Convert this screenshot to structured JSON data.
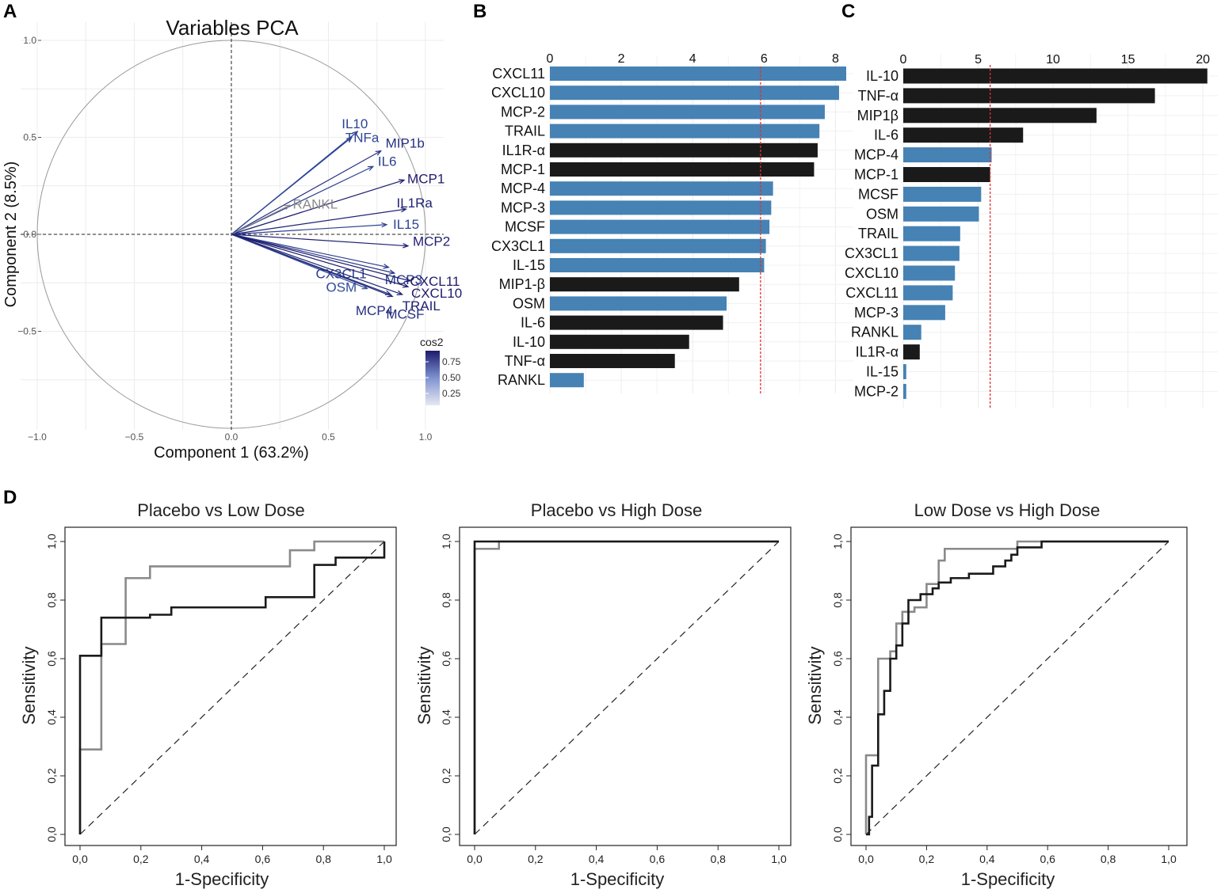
{
  "panels": {
    "A": "A",
    "B": "B",
    "C": "C",
    "D": "D"
  },
  "colors": {
    "blue": "#4682B4",
    "black": "#1a1a1a",
    "cutoff": "#e03030",
    "roc_dark": "#1a1a1a",
    "roc_gray": "#8a8a8a"
  },
  "chart_data": [
    {
      "id": "pca",
      "type": "scatter",
      "title": "Variables PCA",
      "xlabel": "Component 1 (63.2%)",
      "ylabel": "Component 2 (8.5%)",
      "xlim": [
        -1.0,
        1.1
      ],
      "ylim": [
        -1.0,
        1.05
      ],
      "xticks": [
        -1.0,
        -0.5,
        0.0,
        0.5,
        1.0
      ],
      "xtick_labels": [
        "−1.0",
        "−0.5",
        "0.0",
        "0.5",
        "1.0"
      ],
      "yticks": [
        -0.5,
        0.0,
        0.5,
        1.0
      ],
      "ytick_labels": [
        "−0.5",
        "0.0",
        "0.5",
        "1.0"
      ],
      "legend_title": "cos2",
      "legend_ticks": [
        "0.75",
        "0.50",
        "0.25"
      ],
      "legend_range": [
        0.1,
        0.85
      ],
      "variables": [
        {
          "name": "IL10",
          "x": 0.65,
          "y": 0.53,
          "cos2": 0.55
        },
        {
          "name": "TNFa",
          "x": 0.62,
          "y": 0.5,
          "cos2": 0.52
        },
        {
          "name": "MIP1b",
          "x": 0.77,
          "y": 0.43,
          "cos2": 0.7
        },
        {
          "name": "IL6",
          "x": 0.73,
          "y": 0.35,
          "cos2": 0.58
        },
        {
          "name": "MCP1",
          "x": 0.89,
          "y": 0.28,
          "cos2": 0.85
        },
        {
          "name": "RANKL",
          "x": 0.3,
          "y": 0.15,
          "cos2": 0.12
        },
        {
          "name": "IL1Ra",
          "x": 0.9,
          "y": 0.13,
          "cos2": 0.8
        },
        {
          "name": "IL15",
          "x": 0.8,
          "y": 0.05,
          "cos2": 0.55
        },
        {
          "name": "MCP2",
          "x": 0.91,
          "y": -0.06,
          "cos2": 0.82
        },
        {
          "name": "CX3CL1",
          "x": 0.81,
          "y": -0.17,
          "cos2": 0.6
        },
        {
          "name": "MCP3",
          "x": 0.84,
          "y": -0.2,
          "cos2": 0.65
        },
        {
          "name": "CXCL11",
          "x": 0.92,
          "y": -0.24,
          "cos2": 0.85
        },
        {
          "name": "CXCL10",
          "x": 0.91,
          "y": -0.27,
          "cos2": 0.85
        },
        {
          "name": "TRAIL",
          "x": 0.88,
          "y": -0.31,
          "cos2": 0.8
        },
        {
          "name": "OSM",
          "x": 0.7,
          "y": -0.28,
          "cos2": 0.5
        },
        {
          "name": "MCP4",
          "x": 0.82,
          "y": -0.31,
          "cos2": 0.7
        },
        {
          "name": "MCSF",
          "x": 0.83,
          "y": -0.32,
          "cos2": 0.7
        }
      ]
    },
    {
      "id": "barB",
      "type": "bar",
      "orientation": "horizontal",
      "xlim": [
        0,
        8.5
      ],
      "xticks": [
        0,
        2,
        4,
        6,
        8
      ],
      "cutoff": 5.9,
      "categories": [
        "CXCL11",
        "CXCL10",
        "MCP-2",
        "TRAIL",
        "IL1R-α",
        "MCP-1",
        "MCP-4",
        "MCP-3",
        "MCSF",
        "CX3CL1",
        "IL-15",
        "MIP1-β",
        "OSM",
        "IL-6",
        "IL-10",
        "TNF-α",
        "RANKL"
      ],
      "values": [
        8.3,
        8.1,
        7.7,
        7.55,
        7.5,
        7.4,
        6.25,
        6.2,
        6.15,
        6.05,
        6.0,
        5.3,
        4.95,
        4.85,
        3.9,
        3.5,
        0.95
      ],
      "colors": [
        "blue",
        "blue",
        "blue",
        "blue",
        "black",
        "black",
        "blue",
        "blue",
        "blue",
        "blue",
        "blue",
        "black",
        "blue",
        "black",
        "black",
        "black",
        "blue"
      ]
    },
    {
      "id": "barC",
      "type": "bar",
      "orientation": "horizontal",
      "xlim": [
        0,
        21
      ],
      "xticks": [
        0,
        5,
        10,
        15,
        20
      ],
      "cutoff": 5.8,
      "categories": [
        "IL-10",
        "TNF-α",
        "MIP1β",
        "IL-6",
        "MCP-4",
        "MCP-1",
        "MCSF",
        "OSM",
        "TRAIL",
        "CX3CL1",
        "CXCL10",
        "CXCL11",
        "MCP-3",
        "RANKL",
        "IL1R-α",
        "IL-15",
        "MCP-2"
      ],
      "values": [
        20.3,
        16.8,
        12.9,
        8.0,
        5.9,
        5.8,
        5.2,
        5.05,
        3.8,
        3.75,
        3.45,
        3.3,
        2.8,
        1.2,
        1.1,
        0.2,
        0.2
      ],
      "colors": [
        "black",
        "black",
        "black",
        "black",
        "blue",
        "black",
        "blue",
        "blue",
        "blue",
        "blue",
        "blue",
        "blue",
        "blue",
        "blue",
        "black",
        "blue",
        "blue"
      ]
    },
    {
      "id": "roc1",
      "type": "line",
      "title": "Placebo vs Low Dose",
      "xlabel": "1-Specificity",
      "ylabel": "Sensitivity",
      "xlim": [
        0,
        1
      ],
      "ylim": [
        0,
        1
      ],
      "tick_labels": [
        "0,0",
        "0,2",
        "0,4",
        "0,6",
        "0,8",
        "1,0"
      ],
      "series": [
        {
          "name": "dark",
          "color": "roc_dark",
          "x": [
            0,
            0,
            0.07,
            0.07,
            0.23,
            0.23,
            0.3,
            0.3,
            0.61,
            0.61,
            0.77,
            0.77,
            0.84,
            0.84,
            1.0,
            1.0
          ],
          "y": [
            0,
            0.61,
            0.61,
            0.74,
            0.74,
            0.75,
            0.75,
            0.775,
            0.775,
            0.81,
            0.81,
            0.92,
            0.92,
            0.945,
            0.945,
            1.0
          ]
        },
        {
          "name": "gray",
          "color": "roc_gray",
          "x": [
            0,
            0,
            0.07,
            0.07,
            0.15,
            0.15,
            0.23,
            0.23,
            0.69,
            0.69,
            0.77,
            0.77,
            1.0
          ],
          "y": [
            0,
            0.29,
            0.29,
            0.65,
            0.65,
            0.875,
            0.875,
            0.915,
            0.915,
            0.97,
            0.97,
            1.0,
            1.0
          ]
        }
      ]
    },
    {
      "id": "roc2",
      "type": "line",
      "title": "Placebo vs High Dose",
      "xlabel": "1-Specificity",
      "ylabel": "Sensitivity",
      "xlim": [
        0,
        1
      ],
      "ylim": [
        0,
        1
      ],
      "tick_labels": [
        "0,0",
        "0,2",
        "0,4",
        "0,6",
        "0,8",
        "1,0"
      ],
      "series": [
        {
          "name": "dark",
          "color": "roc_dark",
          "x": [
            0,
            0,
            0.08,
            0.08,
            1.0
          ],
          "y": [
            0,
            1.0,
            1.0,
            1.0,
            1.0
          ]
        },
        {
          "name": "gray",
          "color": "roc_gray",
          "x": [
            0,
            0,
            0.01,
            0.01,
            0.08,
            0.08,
            1.0
          ],
          "y": [
            0,
            0.975,
            0.975,
            0.975,
            0.975,
            1.0,
            1.0
          ]
        }
      ]
    },
    {
      "id": "roc3",
      "type": "line",
      "title": "Low Dose vs High Dose",
      "xlabel": "1-Specificity",
      "ylabel": "Sensitivity",
      "xlim": [
        0,
        1
      ],
      "ylim": [
        0,
        1
      ],
      "tick_labels": [
        "0,0",
        "0,2",
        "0,4",
        "0,6",
        "0,8",
        "1,0"
      ],
      "series": [
        {
          "name": "dark",
          "color": "roc_dark",
          "x": [
            0,
            0.01,
            0.01,
            0.02,
            0.02,
            0.04,
            0.04,
            0.06,
            0.06,
            0.08,
            0.08,
            0.1,
            0.1,
            0.12,
            0.12,
            0.14,
            0.14,
            0.18,
            0.18,
            0.22,
            0.22,
            0.24,
            0.24,
            0.28,
            0.28,
            0.34,
            0.34,
            0.42,
            0.42,
            0.46,
            0.46,
            0.48,
            0.48,
            0.5,
            0.5,
            0.58,
            0.58,
            1.0
          ],
          "y": [
            0,
            0,
            0.06,
            0.06,
            0.235,
            0.235,
            0.41,
            0.41,
            0.49,
            0.49,
            0.6,
            0.6,
            0.645,
            0.645,
            0.72,
            0.72,
            0.8,
            0.8,
            0.82,
            0.82,
            0.84,
            0.84,
            0.86,
            0.86,
            0.875,
            0.875,
            0.89,
            0.89,
            0.915,
            0.915,
            0.935,
            0.935,
            0.955,
            0.955,
            0.98,
            0.98,
            1.0,
            1.0
          ]
        },
        {
          "name": "gray",
          "color": "roc_gray",
          "x": [
            0,
            0,
            0.04,
            0.04,
            0.08,
            0.08,
            0.1,
            0.1,
            0.12,
            0.12,
            0.16,
            0.16,
            0.2,
            0.2,
            0.24,
            0.24,
            0.26,
            0.26,
            0.28,
            0.28,
            0.5,
            0.5,
            1.0
          ],
          "y": [
            0,
            0.27,
            0.27,
            0.6,
            0.6,
            0.625,
            0.625,
            0.72,
            0.72,
            0.76,
            0.76,
            0.775,
            0.775,
            0.855,
            0.855,
            0.935,
            0.935,
            0.975,
            0.975,
            0.975,
            0.975,
            1.0,
            1.0
          ]
        }
      ]
    }
  ]
}
